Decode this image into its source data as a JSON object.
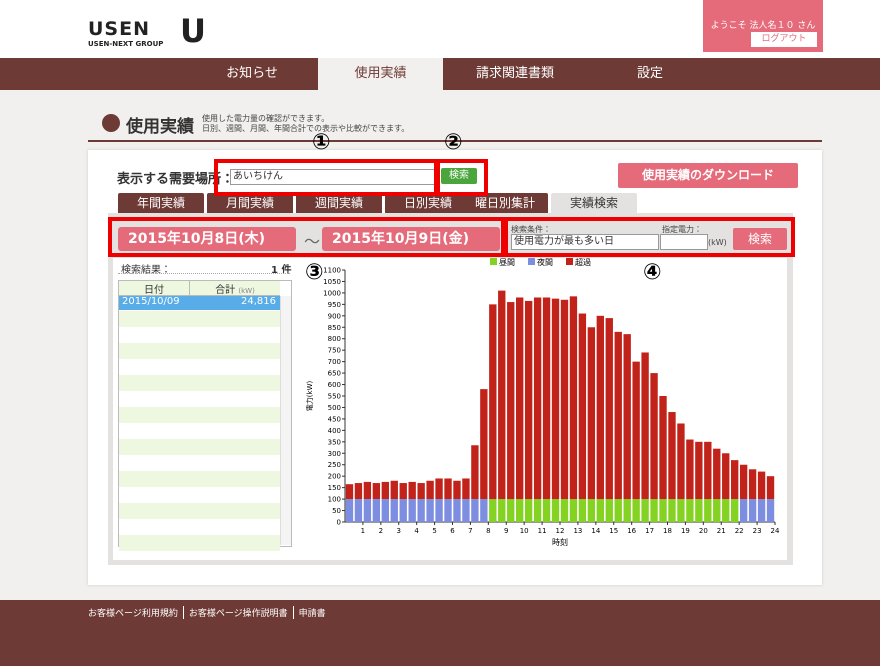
{
  "header": {
    "logo": "USEN",
    "group": "USEN-NEXT GROUP",
    "logo_mark": "U",
    "welcome": "ようこそ 法人名１０ さん",
    "logout": "ログアウト"
  },
  "nav": [
    "お知らせ",
    "使用実績",
    "請求関連書類",
    "設定"
  ],
  "page": {
    "title": "使用実績",
    "description": [
      "使用した電力量の確認ができます。",
      "日別、週間、月間、年間合計での表示や比較ができます。"
    ]
  },
  "location": {
    "label": "表示する需要場所：",
    "selected": "あいちけん",
    "search": "検索"
  },
  "download": "使用実績のダウンロード",
  "tabs": [
    "年間実績",
    "月間実績",
    "週間実績",
    "日別実績",
    "曜日別集計",
    "実績検索"
  ],
  "search": {
    "date_from": "2015年10月8日(木)",
    "separator": "〜",
    "date_to": "2015年10月9日(金)",
    "condition_label": "検索条件：",
    "condition": "使用電力が最も多い日",
    "power_label": "指定電力：",
    "unit": "(kW)",
    "button": "検索"
  },
  "results": {
    "label": "検索結果：",
    "count": "1 件",
    "columns": [
      {
        "label": "日付"
      },
      {
        "label": "合計",
        "unit": "(kW)"
      }
    ],
    "rows": [
      [
        "2015/10/09",
        "24,816"
      ]
    ]
  },
  "annotations": [
    "①",
    "②",
    "③",
    "④"
  ],
  "footer": {
    "links": [
      "お客様ページ利用規約",
      "お客様ページ操作説明書",
      "申請書"
    ]
  },
  "chart_data": {
    "type": "bar",
    "stacked": true,
    "xlabel": "時刻",
    "ylabel": "電力(kW)",
    "legend": "top",
    "grid": false,
    "x": [
      0,
      0.5,
      1,
      1.5,
      2,
      2.5,
      3,
      3.5,
      4,
      4.5,
      5,
      5.5,
      6,
      6.5,
      7,
      7.5,
      8,
      8.5,
      9,
      9.5,
      10,
      10.5,
      11,
      11.5,
      12,
      12.5,
      13,
      13.5,
      14,
      14.5,
      15,
      15.5,
      16,
      16.5,
      17,
      17.5,
      18,
      18.5,
      19,
      19.5,
      20,
      20.5,
      21,
      21.5,
      22,
      22.5,
      23,
      23.5
    ],
    "xlim": [
      0,
      24
    ],
    "xticks": [
      1,
      2,
      3,
      4,
      5,
      6,
      7,
      8,
      9,
      10,
      11,
      12,
      13,
      14,
      15,
      16,
      17,
      18,
      19,
      20,
      21,
      22,
      23,
      24
    ],
    "ylim": [
      0,
      1100
    ],
    "yticks": [
      0,
      50,
      100,
      150,
      200,
      250,
      300,
      350,
      400,
      450,
      500,
      550,
      600,
      650,
      700,
      750,
      800,
      850,
      900,
      950,
      1000,
      1050,
      1100
    ],
    "series": [
      {
        "name": "昼間",
        "color": "#84d221",
        "values": [
          null,
          null,
          null,
          null,
          null,
          null,
          null,
          null,
          null,
          null,
          null,
          null,
          null,
          null,
          null,
          null,
          100,
          100,
          100,
          100,
          100,
          100,
          100,
          100,
          100,
          100,
          100,
          100,
          100,
          100,
          100,
          100,
          100,
          100,
          100,
          100,
          100,
          100,
          100,
          100,
          100,
          100,
          100,
          100,
          null,
          null,
          null,
          null
        ]
      },
      {
        "name": "夜間",
        "color": "#7d8ee0",
        "values": [
          100,
          100,
          100,
          100,
          100,
          100,
          100,
          100,
          100,
          100,
          100,
          100,
          100,
          100,
          100,
          100,
          null,
          null,
          null,
          null,
          null,
          null,
          null,
          null,
          null,
          null,
          null,
          null,
          null,
          null,
          null,
          null,
          null,
          null,
          null,
          null,
          null,
          null,
          null,
          null,
          null,
          null,
          null,
          null,
          100,
          100,
          100,
          100
        ]
      },
      {
        "name": "超過",
        "color": "#c1231b",
        "values": [
          65,
          70,
          75,
          70,
          75,
          80,
          70,
          75,
          70,
          80,
          90,
          90,
          80,
          90,
          235,
          480,
          850,
          910,
          860,
          880,
          865,
          880,
          880,
          875,
          870,
          885,
          810,
          750,
          800,
          790,
          730,
          720,
          600,
          640,
          550,
          450,
          380,
          330,
          260,
          250,
          250,
          220,
          200,
          170,
          150,
          130,
          120,
          100
        ]
      }
    ]
  }
}
